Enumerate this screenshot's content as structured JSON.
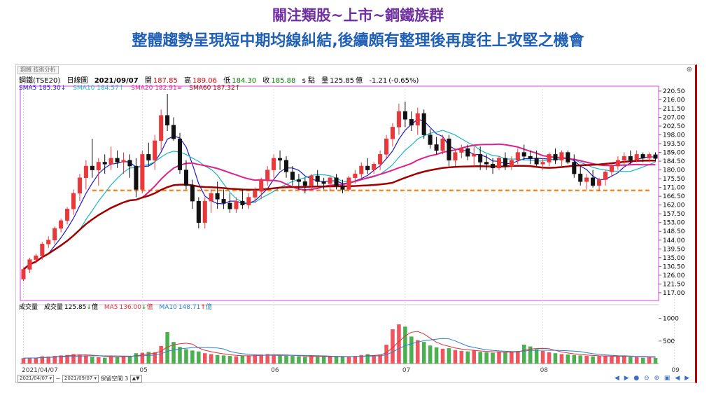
{
  "headline": {
    "line1": "關注類股~上市~鋼鐵族群",
    "line2": "整體趨勢呈現短中期均線糾結,後續頗有整理後再度往上攻堅之機會"
  },
  "panel": {
    "stamp": "鋼鐵 技術分析",
    "zoom_icon": "zoom-icon"
  },
  "infobar": {
    "symbol": "鋼鐵(TSE20)",
    "period": "日線圖",
    "date": "2021/09/07",
    "open_label": "開",
    "open": "187.85",
    "high_label": "高",
    "high": "189.06",
    "low_label": "低",
    "low": "184.30",
    "close_label": "收",
    "close": "185.88",
    "unit_label": "s 點",
    "vol_label": "量",
    "volume": "125.85",
    "vol_unit": "億",
    "change": "-1.21",
    "change_pct": "(-0.65%)"
  },
  "ma_legend": [
    {
      "label": "SMA5",
      "value": "185.30",
      "arrow": "↓",
      "color": "#1a1acc"
    },
    {
      "label": "SMA10",
      "value": "184.57",
      "arrow": "↑",
      "color": "#17b8c8"
    },
    {
      "label": "SMA20",
      "value": "182.91",
      "arrow": "=",
      "color": "#e0208c"
    },
    {
      "label": "SMA60",
      "value": "187.32",
      "arrow": "↑",
      "color": "#a00000"
    }
  ],
  "vol_legend": {
    "title": "成交量",
    "vol_label": "成交量",
    "vol_value": "125.85",
    "vol_arrow": "↓",
    "unit": "億",
    "ma5_label": "MA5",
    "ma5_value": "136.00",
    "ma5_arrow": "↓",
    "ma10_label": "MA10",
    "ma10_value": "148.71",
    "ma10_arrow": "↑"
  },
  "bottombar": {
    "start_date": "2021/04/07",
    "tilde": "~",
    "end_date": "2021/09/07",
    "keep_label": "保留空間",
    "keep_value": "3"
  },
  "nav_icons": "◀ ▶ ● ⊖ ⊕ ▣ ◀ ▶",
  "colors": {
    "up": "#e8383b",
    "down": "#111111",
    "vol_up": "#f0545c",
    "vol_down": "#4caf50",
    "support": "#f08c28"
  },
  "chart_data": {
    "type": "candlestick",
    "price_axis": {
      "ticks": [
        117.0,
        121.5,
        126.0,
        130.5,
        135.0,
        139.5,
        144.0,
        148.5,
        153.0,
        157.5,
        162.0,
        166.5,
        171.0,
        175.5,
        180.0,
        184.5,
        189.0,
        193.5,
        198.0,
        202.5,
        207.0,
        211.5,
        216.0,
        220.5
      ],
      "range": [
        113.0,
        223.0
      ]
    },
    "volume_axis": {
      "ticks": [
        500,
        1000
      ],
      "range": [
        0,
        1150
      ]
    },
    "x_labels": [
      {
        "label": "2021/04/07",
        "index": 0
      },
      {
        "label": "05",
        "index": 19
      },
      {
        "label": "06",
        "index": 40
      },
      {
        "label": "07",
        "index": 61
      },
      {
        "label": "08",
        "index": 83
      },
      {
        "label": "09",
        "index": 104
      }
    ],
    "ohlc": [
      [
        124,
        130,
        123,
        129
      ],
      [
        129,
        135,
        127,
        134
      ],
      [
        134,
        137,
        132,
        136
      ],
      [
        136,
        143,
        134,
        142
      ],
      [
        142,
        146,
        140,
        144
      ],
      [
        144,
        151,
        142,
        150
      ],
      [
        150,
        155,
        148,
        154
      ],
      [
        154,
        161,
        152,
        160
      ],
      [
        160,
        170,
        157,
        168
      ],
      [
        168,
        178,
        164,
        176
      ],
      [
        176,
        185,
        170,
        182
      ],
      [
        182,
        196,
        176,
        180
      ],
      [
        180,
        186,
        172,
        184
      ],
      [
        184,
        188,
        178,
        183
      ],
      [
        183,
        192,
        180,
        186
      ],
      [
        186,
        190,
        181,
        184
      ],
      [
        184,
        189,
        178,
        185
      ],
      [
        185,
        188,
        176,
        182
      ],
      [
        182,
        186,
        166,
        170
      ],
      [
        170,
        190,
        168,
        188
      ],
      [
        188,
        194,
        182,
        185
      ],
      [
        185,
        198,
        180,
        195
      ],
      [
        195,
        211,
        190,
        208
      ],
      [
        208,
        219,
        200,
        203
      ],
      [
        203,
        207,
        195,
        196
      ],
      [
        196,
        199,
        178,
        180
      ],
      [
        180,
        185,
        170,
        172
      ],
      [
        172,
        175,
        160,
        164
      ],
      [
        164,
        166,
        150,
        153
      ],
      [
        153,
        166,
        150,
        164
      ],
      [
        164,
        170,
        158,
        168
      ],
      [
        168,
        174,
        160,
        165
      ],
      [
        165,
        170,
        160,
        163
      ],
      [
        163,
        168,
        158,
        160
      ],
      [
        160,
        166,
        158,
        164
      ],
      [
        164,
        170,
        160,
        162
      ],
      [
        162,
        168,
        160,
        166
      ],
      [
        166,
        171,
        163,
        169
      ],
      [
        169,
        176,
        165,
        175
      ],
      [
        175,
        182,
        172,
        180
      ],
      [
        180,
        188,
        176,
        186
      ],
      [
        186,
        190,
        180,
        185
      ],
      [
        185,
        187,
        176,
        179
      ],
      [
        179,
        182,
        172,
        175
      ],
      [
        175,
        178,
        170,
        174
      ],
      [
        174,
        176,
        168,
        172
      ],
      [
        172,
        178,
        170,
        177
      ],
      [
        177,
        180,
        172,
        174
      ],
      [
        174,
        176,
        170,
        173
      ],
      [
        173,
        177,
        169,
        176
      ],
      [
        176,
        178,
        170,
        172
      ],
      [
        172,
        175,
        168,
        170
      ],
      [
        170,
        177,
        169,
        176
      ],
      [
        176,
        180,
        173,
        178
      ],
      [
        178,
        184,
        176,
        182
      ],
      [
        182,
        186,
        178,
        180
      ],
      [
        180,
        184,
        178,
        183
      ],
      [
        183,
        190,
        180,
        188
      ],
      [
        188,
        198,
        186,
        196
      ],
      [
        196,
        204,
        192,
        202
      ],
      [
        202,
        214,
        198,
        210
      ],
      [
        210,
        215,
        202,
        206
      ],
      [
        206,
        210,
        200,
        203
      ],
      [
        203,
        212,
        198,
        209
      ],
      [
        209,
        211,
        196,
        198
      ],
      [
        198,
        201,
        191,
        193
      ],
      [
        193,
        197,
        188,
        190
      ],
      [
        190,
        198,
        188,
        196
      ],
      [
        196,
        198,
        182,
        185
      ],
      [
        185,
        191,
        182,
        189
      ],
      [
        189,
        193,
        186,
        191
      ],
      [
        191,
        193,
        185,
        187
      ],
      [
        187,
        192,
        182,
        188
      ],
      [
        188,
        192,
        180,
        184
      ],
      [
        184,
        188,
        180,
        183
      ],
      [
        183,
        186,
        178,
        181
      ],
      [
        181,
        187,
        180,
        186
      ],
      [
        186,
        189,
        180,
        182
      ],
      [
        182,
        187,
        180,
        185
      ],
      [
        185,
        191,
        183,
        189
      ],
      [
        189,
        193,
        185,
        187
      ],
      [
        187,
        190,
        183,
        186
      ],
      [
        186,
        190,
        182,
        183
      ],
      [
        183,
        186,
        180,
        184
      ],
      [
        184,
        189,
        182,
        188
      ],
      [
        188,
        191,
        183,
        185
      ],
      [
        185,
        190,
        182,
        189
      ],
      [
        189,
        190,
        183,
        184
      ],
      [
        184,
        188,
        176,
        178
      ],
      [
        178,
        182,
        172,
        174
      ],
      [
        174,
        178,
        170,
        176
      ],
      [
        176,
        180,
        171,
        172
      ],
      [
        172,
        176,
        169,
        175
      ],
      [
        175,
        180,
        172,
        179
      ],
      [
        179,
        183,
        177,
        182
      ],
      [
        182,
        187,
        180,
        185
      ],
      [
        185,
        189,
        182,
        187
      ],
      [
        187,
        190,
        183,
        185
      ],
      [
        185,
        190,
        184,
        188
      ],
      [
        188,
        189,
        184,
        186
      ],
      [
        186,
        189,
        184,
        188
      ],
      [
        187.85,
        189.06,
        184.3,
        185.88
      ]
    ],
    "volume": [
      120,
      130,
      125,
      160,
      155,
      170,
      180,
      190,
      210,
      200,
      180,
      150,
      140,
      130,
      160,
      150,
      170,
      165,
      230,
      240,
      260,
      250,
      390,
      700,
      480,
      370,
      320,
      290,
      270,
      230,
      210,
      190,
      180,
      170,
      160,
      170,
      180,
      190,
      200,
      210,
      190,
      180,
      175,
      170,
      160,
      150,
      165,
      155,
      150,
      160,
      150,
      145,
      155,
      170,
      190,
      210,
      180,
      200,
      420,
      760,
      870,
      820,
      600,
      520,
      480,
      400,
      360,
      330,
      340,
      300,
      280,
      270,
      290,
      260,
      250,
      240,
      260,
      250,
      270,
      280,
      420,
      380,
      320,
      280,
      250,
      230,
      210,
      200,
      190,
      180,
      170,
      160,
      165,
      170,
      160,
      155,
      170,
      150,
      140,
      130,
      145,
      125.85
    ],
    "ma": [
      {
        "name": "SMA5",
        "period": 5,
        "color": "#1a1acc"
      },
      {
        "name": "SMA10",
        "period": 10,
        "color": "#17b8c8"
      },
      {
        "name": "SMA20",
        "period": 20,
        "color": "#e0208c"
      },
      {
        "name": "SMA60",
        "period": 60,
        "color": "#a00000"
      }
    ],
    "volume_ma": [
      {
        "name": "MA5",
        "period": 5,
        "color": "#e0303a"
      },
      {
        "name": "MA10",
        "period": 10,
        "color": "#2a7fd4"
      }
    ],
    "support_line": {
      "value": 169.5,
      "style": "dashed"
    }
  }
}
